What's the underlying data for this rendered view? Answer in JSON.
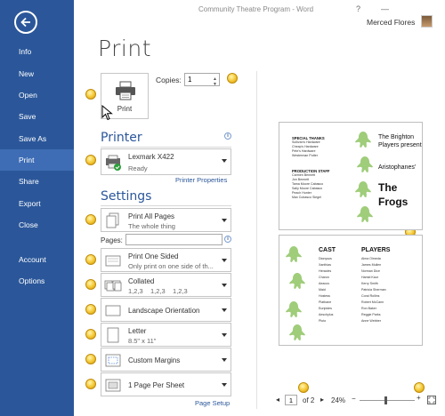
{
  "window": {
    "title": "Community Theatre Program - Word",
    "help": "?",
    "minimize": "—",
    "user": "Merced Flores"
  },
  "sidebar": {
    "items": [
      {
        "label": "Info"
      },
      {
        "label": "New"
      },
      {
        "label": "Open"
      },
      {
        "label": "Save"
      },
      {
        "label": "Save As"
      },
      {
        "label": "Print",
        "active": true
      },
      {
        "label": "Share"
      },
      {
        "label": "Export"
      },
      {
        "label": "Close"
      },
      {
        "label": "Account"
      },
      {
        "label": "Options"
      }
    ]
  },
  "print": {
    "title": "Print",
    "button_label": "Print",
    "copies_label": "Copies:",
    "copies_value": "1"
  },
  "printer": {
    "section_title": "Printer",
    "name": "Lexmark X422",
    "status": "Ready",
    "properties_link": "Printer Properties"
  },
  "settings": {
    "section_title": "Settings",
    "pages_label": "Pages:",
    "pages_value": "",
    "items": [
      {
        "line1": "Print All Pages",
        "line2": "The whole thing",
        "icon": "pages-icon"
      },
      {
        "line1": "Print One Sided",
        "line2": "Only print on one side of th...",
        "icon": "one-sided-icon"
      },
      {
        "line1": "Collated",
        "line2": "1,2,3    1,2,3    1,2,3",
        "icon": "collated-icon"
      },
      {
        "line1": "Landscape Orientation",
        "line2": "",
        "icon": "landscape-icon"
      },
      {
        "line1": "Letter",
        "line2": "8.5\" x 11\"",
        "icon": "letter-icon"
      },
      {
        "line1": "Custom Margins",
        "line2": "",
        "icon": "margins-icon"
      },
      {
        "line1": "1 Page Per Sheet",
        "line2": "",
        "icon": "page-per-sheet-icon"
      }
    ],
    "page_setup_link": "Page Setup"
  },
  "preview": {
    "page1": {
      "special_thanks_h": "SPECIAL THANKS",
      "special_thanks": [
        "Sullivan's Hardware",
        "Cheap's Hardware",
        "Pete's Hardware",
        "Westerman Potter"
      ],
      "staff_h": "PRODUCTION STAFF",
      "staff": [
        "Carmen Bennett",
        "Jon Bennett",
        "Tama Moore Cabasco",
        "Sally Moore Cabasco",
        "Peach Hunter",
        "Max Cubasco Siegel"
      ],
      "presenter": [
        "The Brighton",
        "Players present"
      ],
      "author": "Aristophanes'",
      "play": [
        "The",
        "Frogs"
      ]
    },
    "page2": {
      "cast_h": "CAST",
      "players_h": "PLAYERS",
      "cast": [
        "Dionysus",
        "Xanthias",
        "Heracles",
        "Charon",
        "Aeacus",
        "Maid",
        "Hostess",
        "Plathane",
        "Euripides",
        "Aeschylus",
        "Pluto"
      ],
      "players": [
        "Alma Olmeda",
        "James Mullen",
        "Norman Dice",
        "Hamid Kaur",
        "Kerry Smith",
        "Patricia Sherman",
        "Coral Rollins",
        "Robert McCann",
        "Ron Baker",
        "Reggie Parks",
        "Anne Webber"
      ]
    }
  },
  "footer": {
    "current_page": "1",
    "of_pages": "of 2",
    "zoom": "24%",
    "zoom_minus": "−",
    "zoom_plus": "+"
  }
}
